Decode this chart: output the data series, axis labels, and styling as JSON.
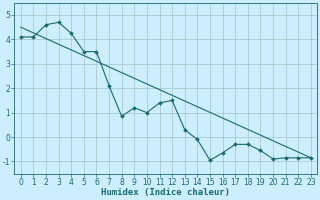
{
  "xlabel": "Humidex (Indice chaleur)",
  "background_color": "#cceeff",
  "line_color": "#1a6b6b",
  "grid_color": "#aacccc",
  "x_data": [
    0,
    1,
    2,
    3,
    4,
    5,
    6,
    7,
    8,
    9,
    10,
    11,
    12,
    13,
    14,
    15,
    16,
    17,
    18,
    19,
    20,
    21,
    22,
    23
  ],
  "y_zigzag": [
    4.1,
    4.1,
    4.6,
    4.7,
    4.25,
    3.5,
    3.5,
    2.1,
    0.85,
    1.2,
    1.0,
    1.4,
    1.5,
    0.3,
    -0.1,
    -0.95,
    -0.65,
    -0.3,
    -0.3,
    -0.55,
    -0.9,
    -0.85,
    -0.85,
    -0.85
  ],
  "y_trend_start": 4.5,
  "y_trend_end": -0.85,
  "ylim": [
    -1.5,
    5.5
  ],
  "xlim": [
    -0.5,
    23.5
  ],
  "yticks": [
    -1,
    0,
    1,
    2,
    3,
    4,
    5
  ],
  "xticks": [
    0,
    1,
    2,
    3,
    4,
    5,
    6,
    7,
    8,
    9,
    10,
    11,
    12,
    13,
    14,
    15,
    16,
    17,
    18,
    19,
    20,
    21,
    22,
    23
  ],
  "xlabel_fontsize": 6.5,
  "tick_fontsize": 5.5,
  "line_width": 0.8,
  "marker_size": 2.0
}
